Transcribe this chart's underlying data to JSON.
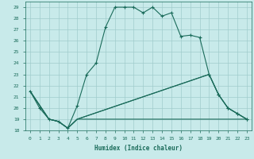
{
  "xlabel": "Humidex (Indice chaleur)",
  "ylabel": "",
  "bg_color": "#c8eaea",
  "line_color": "#1a6b5a",
  "grid_color": "#a0cccc",
  "xlim": [
    -0.5,
    23.5
  ],
  "ylim": [
    18,
    29.5
  ],
  "yticks": [
    18,
    19,
    20,
    21,
    22,
    23,
    24,
    25,
    26,
    27,
    28,
    29
  ],
  "xticks": [
    0,
    1,
    2,
    3,
    4,
    5,
    6,
    7,
    8,
    9,
    10,
    11,
    12,
    13,
    14,
    15,
    16,
    17,
    18,
    19,
    20,
    21,
    22,
    23
  ],
  "lines": [
    {
      "x": [
        0,
        1,
        2,
        3,
        4,
        5,
        6,
        7,
        8,
        9,
        10,
        11,
        12,
        13,
        14,
        15,
        16,
        17,
        18,
        19,
        20,
        21,
        22,
        23
      ],
      "y": [
        21.5,
        20,
        19,
        18.8,
        18.2,
        20.2,
        23,
        24,
        27.2,
        29,
        29,
        29,
        28.5,
        29,
        28.2,
        28.5,
        26.4,
        26.5,
        26.3,
        23,
        21.2,
        20,
        19.5,
        19
      ],
      "style": "-",
      "marker": "+"
    },
    {
      "x": [
        0,
        2,
        3,
        4,
        5,
        23
      ],
      "y": [
        21.5,
        19,
        18.8,
        18.2,
        19.0,
        19.0
      ],
      "style": "-",
      "marker": null,
      "connected_to_end": true
    },
    {
      "x": [
        0,
        2,
        3,
        4,
        5,
        19,
        20,
        21,
        22,
        23
      ],
      "y": [
        21.5,
        19,
        18.8,
        18.2,
        19.0,
        23.0,
        21.2,
        20.0,
        19.5,
        19.0
      ],
      "style": "-",
      "marker": null
    },
    {
      "x": [
        0,
        2,
        3,
        4,
        5,
        20,
        21,
        22,
        23
      ],
      "y": [
        21.5,
        19,
        18.8,
        18.2,
        19.0,
        21.2,
        20.0,
        19.5,
        19.0
      ],
      "style": "-",
      "marker": null
    }
  ]
}
